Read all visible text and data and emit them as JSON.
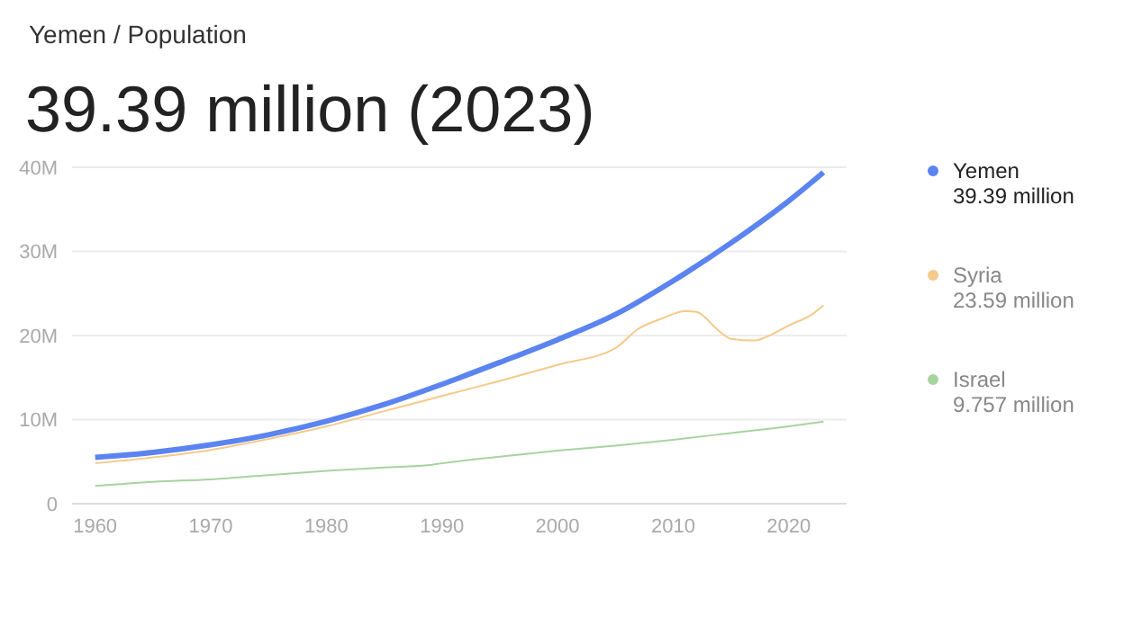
{
  "chart_data": {
    "type": "line",
    "subtitle": "Yemen / Population",
    "title": "39.39 million (2023)",
    "series": [
      {
        "name": "Yemen",
        "color": "#5b84f0",
        "x": [
          1960,
          1965,
          1970,
          1975,
          1980,
          1985,
          1990,
          1995,
          2000,
          2005,
          2010,
          2015,
          2020,
          2023
        ],
        "values": [
          5.5,
          6.1,
          7.0,
          8.2,
          9.8,
          11.8,
          14.2,
          16.8,
          19.5,
          22.5,
          26.5,
          31.0,
          36.0,
          39.39
        ]
      },
      {
        "name": "Syria",
        "color": "#f5c98a",
        "x": [
          1960,
          1965,
          1970,
          1975,
          1980,
          1985,
          1990,
          1995,
          2000,
          2005,
          2007,
          2009,
          2011,
          2012,
          2014,
          2015,
          2017,
          2018,
          2020,
          2022,
          2023
        ],
        "values": [
          4.8,
          5.5,
          6.4,
          7.7,
          9.2,
          11.0,
          12.8,
          14.6,
          16.5,
          18.5,
          20.8,
          22.0,
          22.9,
          22.8,
          20.5,
          19.6,
          19.4,
          19.8,
          21.2,
          22.5,
          23.59
        ]
      },
      {
        "name": "Israel",
        "color": "#a8d3a0",
        "x": [
          1960,
          1965,
          1970,
          1975,
          1980,
          1985,
          1989,
          1990,
          1995,
          2000,
          2005,
          2010,
          2015,
          2020,
          2023
        ],
        "values": [
          2.1,
          2.6,
          2.9,
          3.4,
          3.9,
          4.3,
          4.6,
          4.8,
          5.6,
          6.3,
          6.9,
          7.6,
          8.4,
          9.2,
          9.757
        ]
      }
    ],
    "annotations": [
      "39.39 million",
      "23.59 million",
      "9.757 million"
    ],
    "xlim": [
      1958,
      2025
    ],
    "xticks": [
      1960,
      1970,
      1980,
      1990,
      2000,
      2010,
      2020
    ],
    "ylim": [
      0,
      40
    ],
    "yticks": [
      {
        "value": 0,
        "label": "0"
      },
      {
        "value": 10,
        "label": "10M"
      },
      {
        "value": 20,
        "label": "20M"
      },
      {
        "value": 30,
        "label": "30M"
      },
      {
        "value": 40,
        "label": "40M"
      }
    ],
    "grid": "y",
    "legend": "right"
  }
}
